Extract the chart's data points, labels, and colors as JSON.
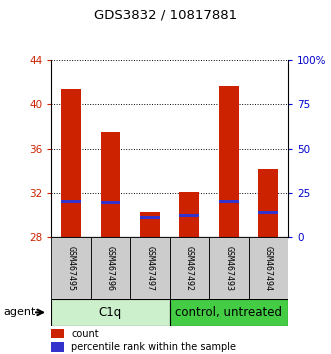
{
  "title": "GDS3832 / 10817881",
  "categories": [
    "GSM467495",
    "GSM467496",
    "GSM467497",
    "GSM467492",
    "GSM467493",
    "GSM467494"
  ],
  "count_values": [
    41.4,
    37.5,
    30.3,
    32.1,
    41.7,
    34.2
  ],
  "percentile_values": [
    31.25,
    31.1,
    29.8,
    30.0,
    31.25,
    30.2
  ],
  "ymin": 28,
  "ymax": 44,
  "yticks": [
    28,
    32,
    36,
    40,
    44
  ],
  "right_yticks_pct": [
    0,
    25,
    50,
    75,
    100
  ],
  "right_ylabels": [
    "0",
    "25",
    "50",
    "75",
    "100%"
  ],
  "bar_color": "#cc2200",
  "percentile_color": "#3333cc",
  "left_tick_color": "#cc2200",
  "right_tick_color": "#0000cc",
  "group1_label": "C1q",
  "group2_label": "control, untreated",
  "agent_label": "agent",
  "legend_count": "count",
  "legend_percentile": "percentile rank within the sample",
  "bar_width": 0.5,
  "group1_bg": "#ccf0cc",
  "group2_bg": "#44cc44",
  "label_bg": "#cccccc",
  "blue_bar_height": 0.28
}
